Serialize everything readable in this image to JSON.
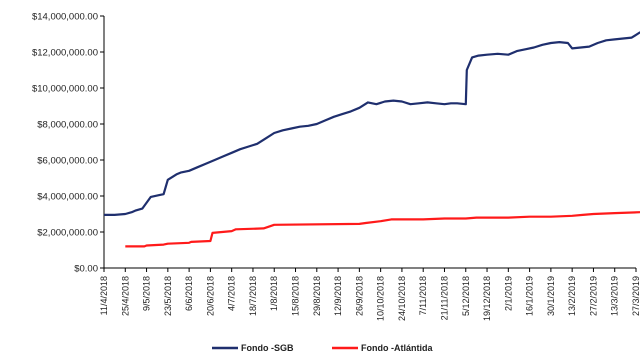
{
  "chart_data": {
    "type": "line",
    "title": "",
    "xlabel": "",
    "ylabel": "",
    "ylim": [
      0,
      14000000
    ],
    "y_ticks": [
      "$0.00",
      "$2,000,000.00",
      "$4,000,000.00",
      "$6,000,000.00",
      "$8,000,000.00",
      "$10,000,000.00",
      "$12,000,000.00",
      "$14,000,000.00"
    ],
    "categories": [
      "11/4/2018",
      "25/4/2018",
      "9/5/2018",
      "23/5/2018",
      "6/6/2018",
      "20/6/2018",
      "4/7/2018",
      "18/7/2018",
      "1/8/2018",
      "15/8/2018",
      "29/8/2018",
      "12/9/2018",
      "26/9/2018",
      "10/10/2018",
      "24/10/2018",
      "7/11/2018",
      "21/11/2018",
      "5/12/2018",
      "19/12/2018",
      "2/1/2019",
      "16/1/2019",
      "30/1/2019",
      "13/2/2019",
      "27/2/2019",
      "13/3/2019",
      "27/3/2019"
    ],
    "grid": false,
    "legend_position": "bottom",
    "series": [
      {
        "name": "Fondo -SGB",
        "color": "#1f2f6e",
        "x": [
          0,
          0.5,
          1,
          1.3,
          1.5,
          1.8,
          2.2,
          2.6,
          2.8,
          3,
          3.4,
          3.6,
          4,
          4.4,
          4.8,
          5.2,
          5.6,
          6,
          6.4,
          6.8,
          7.2,
          7.6,
          8,
          8.4,
          8.8,
          9.2,
          9.6,
          10,
          10.4,
          10.8,
          11.2,
          11.6,
          12,
          12.4,
          12.8,
          13.2,
          13.6,
          14,
          14.4,
          14.8,
          15.2,
          15.6,
          16,
          16.3,
          16.6,
          17,
          17.05,
          17.3,
          17.6,
          18,
          18.5,
          19,
          19.4,
          19.8,
          20.2,
          20.6,
          21,
          21.4,
          21.8,
          22,
          22.4,
          22.8,
          23.2,
          23.6,
          24,
          24.4,
          24.8,
          25.2
        ],
        "values": [
          2950000,
          2950000,
          3000000,
          3100000,
          3200000,
          3300000,
          3950000,
          4050000,
          4100000,
          4900000,
          5200000,
          5300000,
          5400000,
          5600000,
          5800000,
          6000000,
          6200000,
          6400000,
          6600000,
          6750000,
          6900000,
          7200000,
          7500000,
          7650000,
          7750000,
          7850000,
          7900000,
          8000000,
          8200000,
          8400000,
          8550000,
          8700000,
          8900000,
          9200000,
          9100000,
          9250000,
          9300000,
          9250000,
          9100000,
          9150000,
          9200000,
          9150000,
          9100000,
          9150000,
          9150000,
          9100000,
          11000000,
          11700000,
          11800000,
          11850000,
          11900000,
          11850000,
          12050000,
          12150000,
          12250000,
          12400000,
          12500000,
          12550000,
          12500000,
          12200000,
          12250000,
          12300000,
          12500000,
          12650000,
          12700000,
          12750000,
          12800000,
          13100000
        ]
      },
      {
        "name": "Fondo -Atlántida",
        "color": "#ff1a1a",
        "x": [
          1,
          1.9,
          2,
          2.8,
          3,
          4,
          4.1,
          5,
          5.1,
          6,
          6.2,
          7.5,
          8,
          12,
          12.3,
          13,
          13.5,
          15,
          16,
          17,
          17.5,
          19,
          20,
          21,
          22,
          22.5,
          23,
          24,
          25.2
        ],
        "values": [
          1200000,
          1200000,
          1250000,
          1300000,
          1350000,
          1400000,
          1450000,
          1500000,
          1950000,
          2050000,
          2150000,
          2200000,
          2400000,
          2450000,
          2500000,
          2600000,
          2700000,
          2700000,
          2750000,
          2750000,
          2800000,
          2800000,
          2850000,
          2850000,
          2900000,
          2950000,
          3000000,
          3050000,
          3100000
        ]
      }
    ]
  }
}
